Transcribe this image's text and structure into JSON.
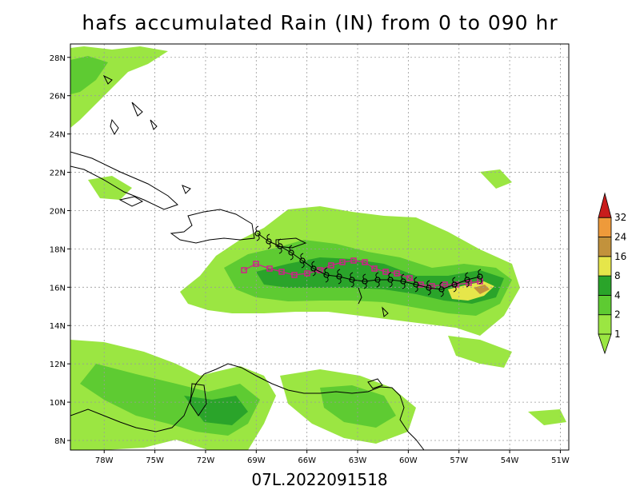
{
  "title": "hafs accumulated Rain (IN) from 0 to 090 hr",
  "footer": "07L.2022091518",
  "map": {
    "lon_range": [
      -80,
      -50.5
    ],
    "lat_range": [
      7.5,
      28.7
    ],
    "lon_ticks": [
      {
        "value": -78,
        "label": "78W"
      },
      {
        "value": -75,
        "label": "75W"
      },
      {
        "value": -72,
        "label": "72W"
      },
      {
        "value": -69,
        "label": "69W"
      },
      {
        "value": -66,
        "label": "66W"
      },
      {
        "value": -63,
        "label": "63W"
      },
      {
        "value": -60,
        "label": "60W"
      },
      {
        "value": -57,
        "label": "57W"
      },
      {
        "value": -54,
        "label": "54W"
      },
      {
        "value": -51,
        "label": "51W"
      }
    ],
    "lat_ticks": [
      {
        "value": 8,
        "label": "8N"
      },
      {
        "value": 10,
        "label": "10N"
      },
      {
        "value": 12,
        "label": "12N"
      },
      {
        "value": 14,
        "label": "14N"
      },
      {
        "value": 16,
        "label": "16N"
      },
      {
        "value": 18,
        "label": "18N"
      },
      {
        "value": 20,
        "label": "20N"
      },
      {
        "value": 22,
        "label": "22N"
      },
      {
        "value": 24,
        "label": "24N"
      },
      {
        "value": 26,
        "label": "26N"
      },
      {
        "value": 28,
        "label": "28N"
      }
    ],
    "gridlines": true
  },
  "colorbar": {
    "levels": [
      "1",
      "2",
      "4",
      "8",
      "16",
      "24",
      "32"
    ],
    "colors": [
      "#9be642",
      "#5ecb32",
      "#2aa42a",
      "#e6e64a",
      "#c2923c",
      "#ee9a3a",
      "#c81c1c"
    ],
    "low_color": "#9be642"
  },
  "track_colors": {
    "forecast": "#000000",
    "observed": "#d0208a"
  }
}
